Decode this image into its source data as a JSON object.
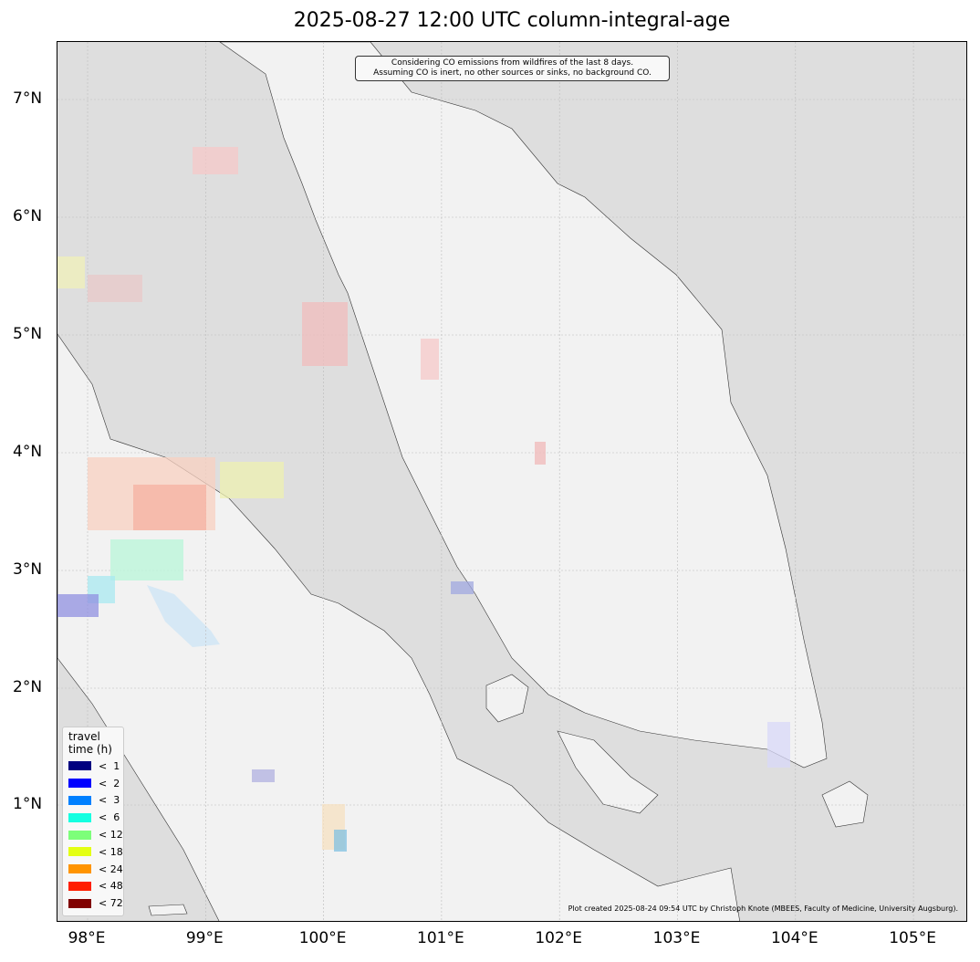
{
  "title": "2025-08-27 12:00 UTC column-integral-age",
  "note_lines": [
    "Considering CO emissions from wildfires of the last 8 days.",
    "Assuming CO is inert, no other sources or sinks, no background CO."
  ],
  "credit": "Plot created 2025-08-24 09:54 UTC by Christoph Knote (MBEES, Faculty of Medicine, University Augsburg).",
  "y_ticks": [
    "7°N",
    "6°N",
    "5°N",
    "4°N",
    "3°N",
    "2°N",
    "1°N"
  ],
  "x_ticks": [
    "98°E",
    "99°E",
    "100°E",
    "101°E",
    "102°E",
    "103°E",
    "104°E",
    "105°E"
  ],
  "legend": {
    "title_line1": "travel",
    "title_line2": "time (h)",
    "items": [
      {
        "label": "<  1",
        "color": "#000080"
      },
      {
        "label": "<  2",
        "color": "#0000ff"
      },
      {
        "label": "<  3",
        "color": "#0080ff"
      },
      {
        "label": "<  6",
        "color": "#15ffe1"
      },
      {
        "label": "< 12",
        "color": "#7dff7a"
      },
      {
        "label": "< 18",
        "color": "#e4ff13"
      },
      {
        "label": "< 24",
        "color": "#ff9400"
      },
      {
        "label": "< 48",
        "color": "#ff1e00"
      },
      {
        "label": "< 72",
        "color": "#800000"
      }
    ]
  },
  "colors": {
    "sea": "#dedede",
    "land": "#f2f2f2"
  }
}
